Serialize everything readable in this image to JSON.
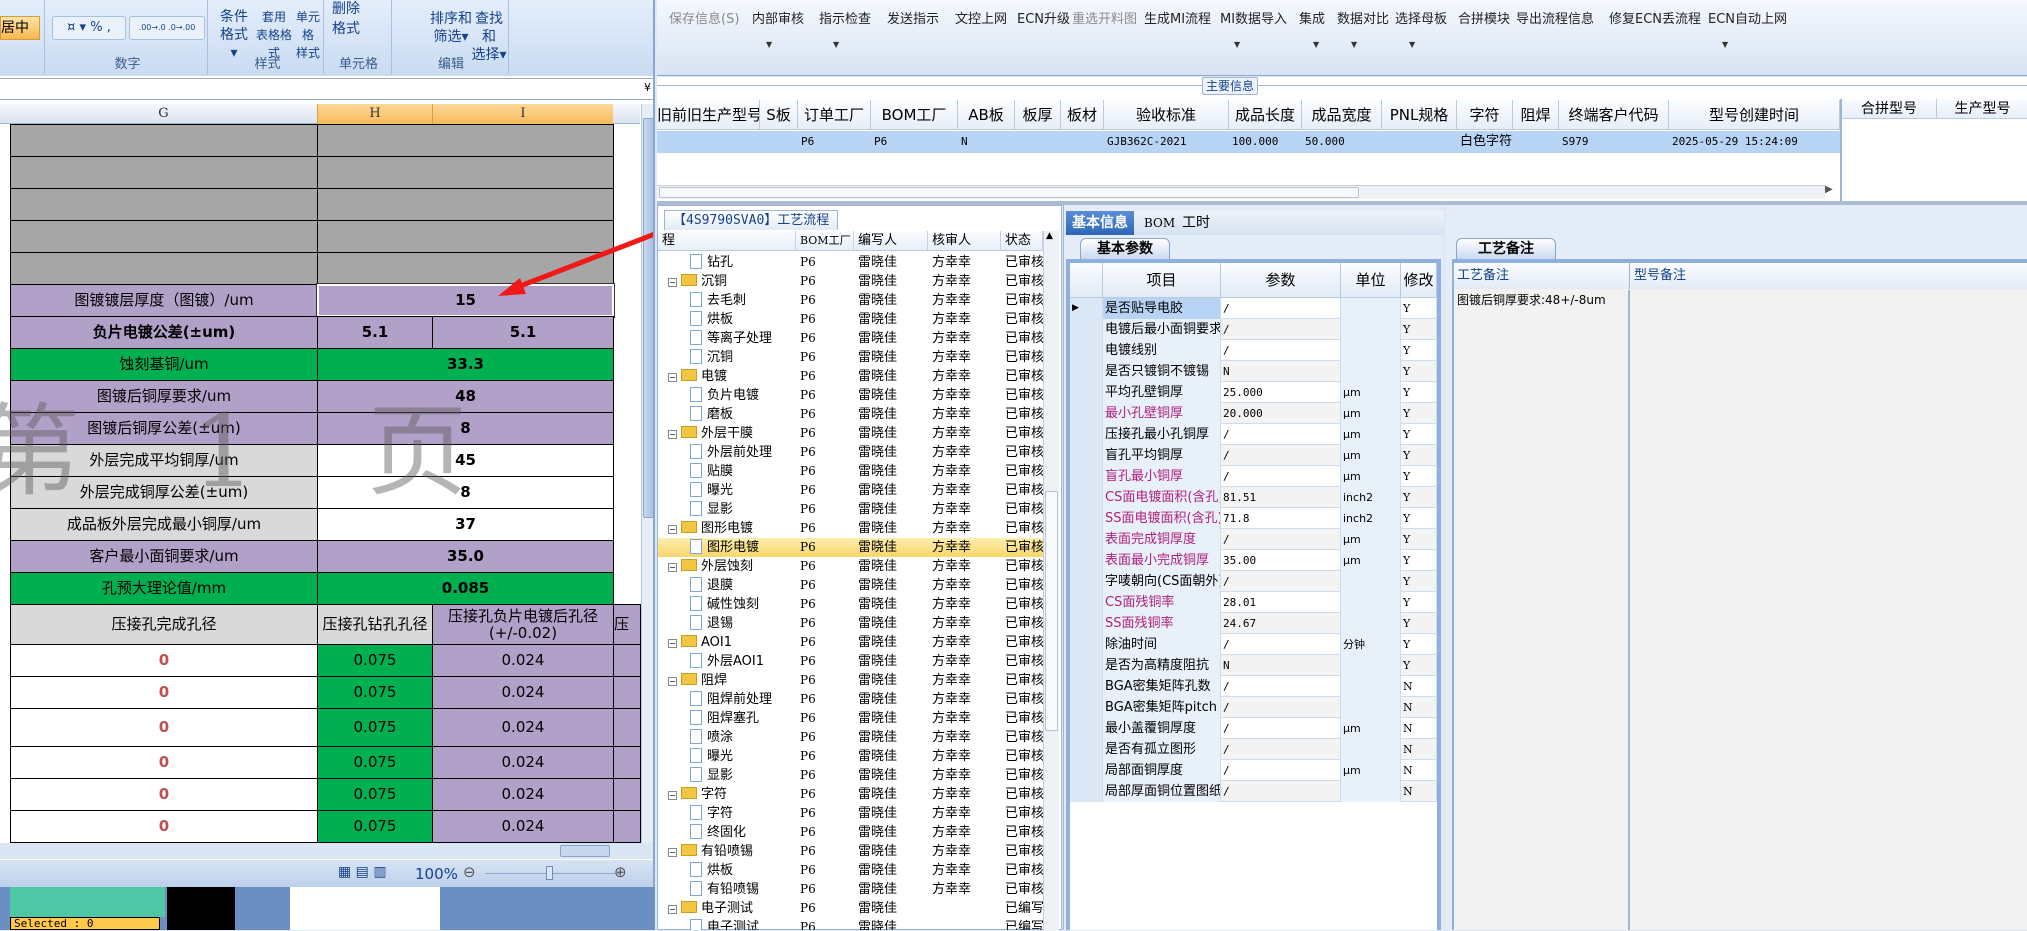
{
  "excel": {
    "ribbon": {
      "align_partial": "居中",
      "number_group": "数字",
      "number_buttons": [
        "%",
        ",",
        ".00→.0",
        ".0→.00"
      ],
      "style_group": "样式",
      "style_buttons": [
        {
          "l1": "条件格式",
          "l2": ""
        },
        {
          "l1": "套用",
          "l2": "表格格式"
        },
        {
          "l1": "单元格",
          "l2": "样式"
        }
      ],
      "cells_group": "单元格",
      "cells_buttons": [
        "删除",
        "格式"
      ],
      "edit_group": "编辑",
      "edit_buttons": [
        {
          "l1": "排序和",
          "l2": "筛选"
        },
        {
          "l1": "查找和",
          "l2": "选择"
        }
      ]
    },
    "columns": [
      "G",
      "H",
      "I"
    ],
    "watermark": "第 1 页",
    "rows": [
      {
        "label": "图镀镀层厚度（图镀）/um",
        "h": "15",
        "fill": "#b1a0c7",
        "lfill": "#b1a0c7"
      },
      {
        "label": "负片电镀公差(±um)",
        "h": "5.1",
        "i": "5.1",
        "fill": "#b1a0c7",
        "lfill": "#b1a0c7",
        "bold": true
      },
      {
        "label": "蚀刻基铜/um",
        "h": "33.3",
        "fill": "#00b050",
        "lfill": "#00b050"
      },
      {
        "label": "图镀后铜厚要求/um",
        "h": "48",
        "fill": "#b1a0c7",
        "lfill": "#b1a0c7"
      },
      {
        "label": "图镀后铜厚公差(±um)",
        "h": "8",
        "fill": "#b1a0c7",
        "lfill": "#b1a0c7"
      },
      {
        "label": "外层完成平均铜厚/um",
        "h": "45",
        "fill": "#ffffff",
        "lfill": "#d9d9d9"
      },
      {
        "label": "外层完成铜厚公差(±um)",
        "h": "8",
        "fill": "#ffffff",
        "lfill": "#d9d9d9"
      },
      {
        "label": "成品板外层完成最小铜厚/um",
        "h": "37",
        "fill": "#ffffff",
        "lfill": "#d9d9d9"
      },
      {
        "label": "客户最小面铜要求/um",
        "h": "35.0",
        "fill": "#b1a0c7",
        "lfill": "#b1a0c7"
      },
      {
        "label": "孔预大理论值/mm",
        "h": "0.085",
        "fill": "#00b050",
        "lfill": "#00b050"
      }
    ],
    "press_header": [
      "压接孔完成孔径",
      "压接孔钻孔孔径",
      "压接孔负片电镀后孔径\n(+/-0.02)",
      "压"
    ],
    "press_rows": [
      [
        "0",
        "0.075",
        "0.024"
      ],
      [
        "0",
        "0.075",
        "0.024"
      ],
      [
        "0",
        "0.075",
        "0.024"
      ],
      [
        "0",
        "0.075",
        "0.024"
      ],
      [
        "0",
        "0.075",
        "0.024"
      ],
      [
        "0",
        "0.075",
        "0.024"
      ]
    ],
    "zoom": "100%",
    "zoom_level_percent": 100,
    "selected_label": "Selected : 0"
  },
  "toolbar": {
    "buttons": [
      {
        "label": "保存信息(S)",
        "disabled": true,
        "arrow": false
      },
      {
        "label": "内部审核",
        "arrow": true
      },
      {
        "label": "指示检查",
        "arrow": true
      },
      {
        "label": "发送指示",
        "arrow": false
      },
      {
        "label": "文控上网",
        "arrow": false
      },
      {
        "label": "ECN升级",
        "arrow": false
      },
      {
        "label": "重选开料图",
        "disabled": true,
        "arrow": false
      },
      {
        "label": "生成MI流程",
        "arrow": false
      },
      {
        "label": "MI数据导入",
        "arrow": true
      },
      {
        "label": "集成",
        "arrow": true
      },
      {
        "label": "数据对比",
        "arrow": true
      },
      {
        "label": "选择母板",
        "arrow": true
      },
      {
        "label": "合拼模块",
        "arrow": false
      },
      {
        "label": "导出流程信息",
        "arrow": false
      },
      {
        "label": "修复ECN丢流程",
        "arrow": false
      },
      {
        "label": "ECN自动上网",
        "arrow": true
      }
    ]
  },
  "main_info": {
    "group_title": "主要信息",
    "columns": [
      "旧前旧生产型号",
      "S板",
      "订单工厂",
      "BOM工厂",
      "AB板",
      "板厚",
      "板材",
      "验收标准",
      "成品长度",
      "成品宽度",
      "PNL规格",
      "字符",
      "阻焊",
      "终端客户代码",
      "型号创建时间"
    ],
    "row": [
      "",
      "",
      "P6",
      "P6",
      "N",
      "",
      "",
      "GJB362C-2021",
      "100.000",
      "50.000",
      "",
      "白色字符",
      "",
      "S979",
      "2025-05-29 15:24:09"
    ],
    "side_columns": [
      "合拼型号",
      "生产型号"
    ]
  },
  "process": {
    "tab_title": "【4S9790SVA0】工艺流程",
    "columns": [
      "程",
      "BOM工厂",
      "编写人",
      "核审人",
      "状态"
    ],
    "rows": [
      {
        "name": "钻孔",
        "type": "file",
        "bom": "P6",
        "writer": "雷晓佳",
        "reviewer": "方幸幸",
        "status": "已审核"
      },
      {
        "name": "沉铜",
        "type": "folder",
        "bom": "P6",
        "writer": "雷晓佳",
        "reviewer": "方幸幸",
        "status": "已审核"
      },
      {
        "name": "去毛刺",
        "type": "file",
        "bom": "P6",
        "writer": "雷晓佳",
        "reviewer": "方幸幸",
        "status": "已审核"
      },
      {
        "name": "烘板",
        "type": "file",
        "bom": "P6",
        "writer": "雷晓佳",
        "reviewer": "方幸幸",
        "status": "已审核"
      },
      {
        "name": "等离子处理",
        "type": "file",
        "bom": "P6",
        "writer": "雷晓佳",
        "reviewer": "方幸幸",
        "status": "已审核"
      },
      {
        "name": "沉铜",
        "type": "file",
        "bom": "P6",
        "writer": "雷晓佳",
        "reviewer": "方幸幸",
        "status": "已审核"
      },
      {
        "name": "电镀",
        "type": "folder",
        "bom": "P6",
        "writer": "雷晓佳",
        "reviewer": "方幸幸",
        "status": "已审核"
      },
      {
        "name": "负片电镀",
        "type": "file",
        "bom": "P6",
        "writer": "雷晓佳",
        "reviewer": "方幸幸",
        "status": "已审核"
      },
      {
        "name": "磨板",
        "type": "file",
        "bom": "P6",
        "writer": "雷晓佳",
        "reviewer": "方幸幸",
        "status": "已审核"
      },
      {
        "name": "外层干膜",
        "type": "folder",
        "bom": "P6",
        "writer": "雷晓佳",
        "reviewer": "方幸幸",
        "status": "已审核"
      },
      {
        "name": "外层前处理",
        "type": "file",
        "bom": "P6",
        "writer": "雷晓佳",
        "reviewer": "方幸幸",
        "status": "已审核"
      },
      {
        "name": "贴膜",
        "type": "file",
        "bom": "P6",
        "writer": "雷晓佳",
        "reviewer": "方幸幸",
        "status": "已审核"
      },
      {
        "name": "曝光",
        "type": "file",
        "bom": "P6",
        "writer": "雷晓佳",
        "reviewer": "方幸幸",
        "status": "已审核"
      },
      {
        "name": "显影",
        "type": "file",
        "bom": "P6",
        "writer": "雷晓佳",
        "reviewer": "方幸幸",
        "status": "已审核"
      },
      {
        "name": "图形电镀",
        "type": "folder",
        "bom": "P6",
        "writer": "雷晓佳",
        "reviewer": "方幸幸",
        "status": "已审核"
      },
      {
        "name": "图形电镀",
        "type": "file",
        "bom": "P6",
        "writer": "雷晓佳",
        "reviewer": "方幸幸",
        "status": "已审核",
        "selected": true
      },
      {
        "name": "外层蚀刻",
        "type": "folder",
        "bom": "P6",
        "writer": "雷晓佳",
        "reviewer": "方幸幸",
        "status": "已审核"
      },
      {
        "name": "退膜",
        "type": "file",
        "bom": "P6",
        "writer": "雷晓佳",
        "reviewer": "方幸幸",
        "status": "已审核"
      },
      {
        "name": "碱性蚀刻",
        "type": "file",
        "bom": "P6",
        "writer": "雷晓佳",
        "reviewer": "方幸幸",
        "status": "已审核"
      },
      {
        "name": "退锡",
        "type": "file",
        "bom": "P6",
        "writer": "雷晓佳",
        "reviewer": "方幸幸",
        "status": "已审核"
      },
      {
        "name": "AOI1",
        "type": "folder",
        "bom": "P6",
        "writer": "雷晓佳",
        "reviewer": "方幸幸",
        "status": "已审核"
      },
      {
        "name": "外层AOI1",
        "type": "file",
        "bom": "P6",
        "writer": "雷晓佳",
        "reviewer": "方幸幸",
        "status": "已审核"
      },
      {
        "name": "阻焊",
        "type": "folder",
        "bom": "P6",
        "writer": "雷晓佳",
        "reviewer": "方幸幸",
        "status": "已审核"
      },
      {
        "name": "阻焊前处理",
        "type": "file",
        "bom": "P6",
        "writer": "雷晓佳",
        "reviewer": "方幸幸",
        "status": "已审核"
      },
      {
        "name": "阻焊塞孔",
        "type": "file",
        "bom": "P6",
        "writer": "雷晓佳",
        "reviewer": "方幸幸",
        "status": "已审核"
      },
      {
        "name": "喷涂",
        "type": "file",
        "bom": "P6",
        "writer": "雷晓佳",
        "reviewer": "方幸幸",
        "status": "已审核"
      },
      {
        "name": "曝光",
        "type": "file",
        "bom": "P6",
        "writer": "雷晓佳",
        "reviewer": "方幸幸",
        "status": "已审核"
      },
      {
        "name": "显影",
        "type": "file",
        "bom": "P6",
        "writer": "雷晓佳",
        "reviewer": "方幸幸",
        "status": "已审核"
      },
      {
        "name": "字符",
        "type": "folder",
        "bom": "P6",
        "writer": "雷晓佳",
        "reviewer": "方幸幸",
        "status": "已审核"
      },
      {
        "name": "字符",
        "type": "file",
        "bom": "P6",
        "writer": "雷晓佳",
        "reviewer": "方幸幸",
        "status": "已审核"
      },
      {
        "name": "终固化",
        "type": "file",
        "bom": "P6",
        "writer": "雷晓佳",
        "reviewer": "方幸幸",
        "status": "已审核"
      },
      {
        "name": "有铅喷锡",
        "type": "folder",
        "bom": "P6",
        "writer": "雷晓佳",
        "reviewer": "方幸幸",
        "status": "已审核"
      },
      {
        "name": "烘板",
        "type": "file",
        "bom": "P6",
        "writer": "雷晓佳",
        "reviewer": "方幸幸",
        "status": "已审核"
      },
      {
        "name": "有铅喷锡",
        "type": "file",
        "bom": "P6",
        "writer": "雷晓佳",
        "reviewer": "方幸幸",
        "status": "已审核"
      },
      {
        "name": "电子测试",
        "type": "folder",
        "bom": "P6",
        "writer": "雷晓佳",
        "reviewer": "",
        "status": "已编写"
      },
      {
        "name": "电子测试",
        "type": "file",
        "bom": "P6",
        "writer": "雷晓佳",
        "reviewer": "",
        "status": "已编写"
      }
    ]
  },
  "info": {
    "tabs": [
      "基本信息",
      "BOM",
      "工时"
    ],
    "subtab": "基本参数",
    "columns": [
      "项目",
      "参数",
      "单位",
      "修改"
    ],
    "highlight_color": "#b0207a",
    "rows": [
      {
        "item": "是否贴导电胶",
        "value": "/",
        "unit": "",
        "mod": "Y",
        "current": true
      },
      {
        "item": "电镀后最小面铜要求",
        "value": "/",
        "unit": "",
        "mod": "Y"
      },
      {
        "item": "电镀线别",
        "value": "/",
        "unit": "",
        "mod": "Y"
      },
      {
        "item": "是否只镀铜不镀锡",
        "value": "N",
        "unit": "",
        "mod": "Y"
      },
      {
        "item": "平均孔壁铜厚",
        "value": "25.000",
        "unit": "μm",
        "mod": "Y"
      },
      {
        "item": "最小孔壁铜厚",
        "value": "20.000",
        "unit": "μm",
        "mod": "Y",
        "hl": true
      },
      {
        "item": "压接孔最小孔铜厚",
        "value": "/",
        "unit": "μm",
        "mod": "Y"
      },
      {
        "item": "盲孔平均铜厚",
        "value": "/",
        "unit": "μm",
        "mod": "Y"
      },
      {
        "item": "盲孔最小铜厚",
        "value": "/",
        "unit": "μm",
        "mod": "Y",
        "hl": true
      },
      {
        "item": "CS面电镀面积(含孔)",
        "value": "81.51",
        "unit": "inch2",
        "mod": "Y",
        "hl": true
      },
      {
        "item": "SS面电镀面积(含孔)",
        "value": "71.8",
        "unit": "inch2",
        "mod": "Y",
        "hl": true
      },
      {
        "item": "表面完成铜厚度",
        "value": "/",
        "unit": "μm",
        "mod": "Y",
        "hl": true
      },
      {
        "item": "表面最小完成铜厚",
        "value": "35.00",
        "unit": "μm",
        "mod": "Y",
        "hl": true
      },
      {
        "item": "字唛朝向(CS面朝外)",
        "value": "/",
        "unit": "",
        "mod": "Y"
      },
      {
        "item": "CS面残铜率",
        "value": "28.01",
        "unit": "",
        "mod": "Y",
        "hl": true
      },
      {
        "item": "SS面残铜率",
        "value": "24.67",
        "unit": "",
        "mod": "Y",
        "hl": true
      },
      {
        "item": "除油时间",
        "value": "/",
        "unit": "分钟",
        "mod": "Y"
      },
      {
        "item": "是否为高精度阻抗",
        "value": "N",
        "unit": "",
        "mod": "Y"
      },
      {
        "item": "BGA密集矩阵孔数",
        "value": "/",
        "unit": "",
        "mod": "N"
      },
      {
        "item": "BGA密集矩阵pitch",
        "value": "/",
        "unit": "",
        "mod": "N"
      },
      {
        "item": "最小盖覆铜厚度",
        "value": "/",
        "unit": "μm",
        "mod": "N"
      },
      {
        "item": "是否有孤立图形",
        "value": "/",
        "unit": "",
        "mod": "N"
      },
      {
        "item": "局部面铜厚度",
        "value": "/",
        "unit": "μm",
        "mod": "N"
      },
      {
        "item": "局部厚面铜位置图纸",
        "value": "/",
        "unit": "",
        "mod": "N"
      }
    ]
  },
  "notes": {
    "tab": "工艺备注",
    "columns": [
      "工艺备注",
      "型号备注"
    ],
    "process_note": "图镀后铜厚要求:48+/-8um",
    "model_note": ""
  }
}
